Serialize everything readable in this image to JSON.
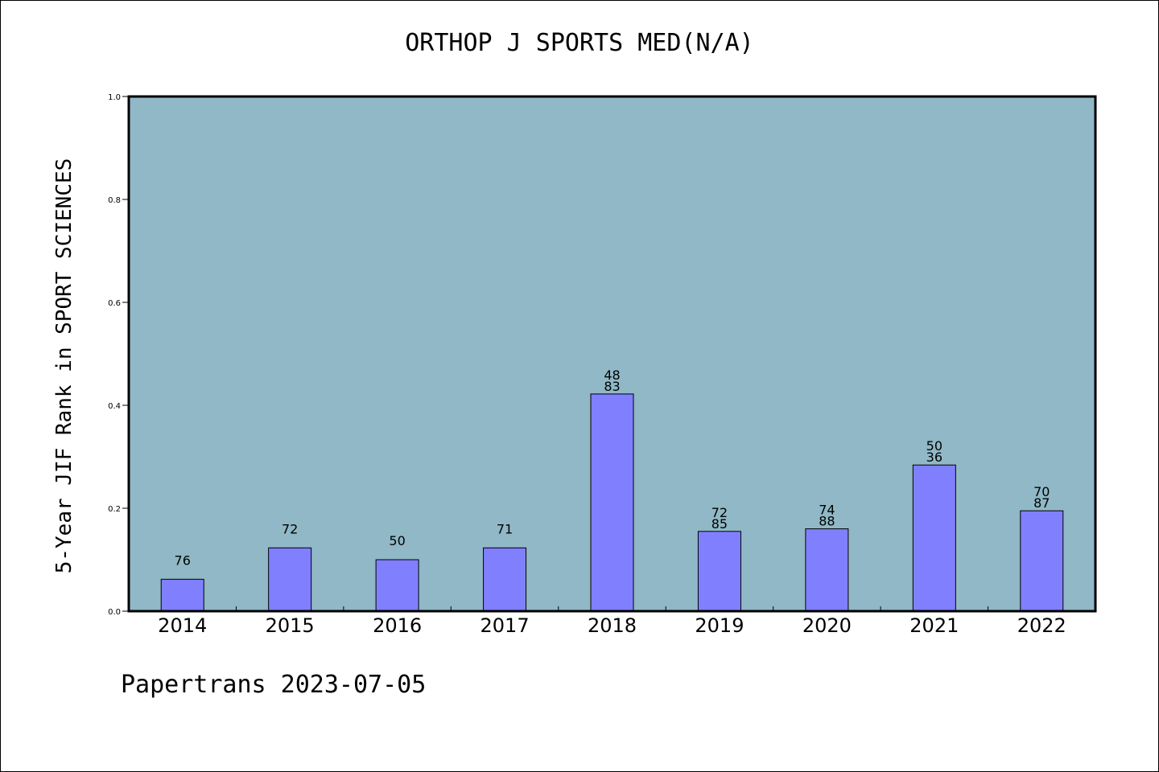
{
  "chart_data": {
    "type": "bar",
    "title": "ORTHOP J SPORTS MED(N/A)",
    "ylabel": "5-Year JIF Rank in SPORT SCIENCES",
    "xlabel": "",
    "ylim": [
      0,
      1.0
    ],
    "yticks": [
      "0.0",
      "0.2",
      "0.4",
      "0.6",
      "0.8",
      "1.0"
    ],
    "yticks_values": [
      0.0,
      0.2,
      0.4,
      0.6,
      0.8,
      1.0
    ],
    "categories": [
      "2014",
      "2015",
      "2016",
      "2017",
      "2018",
      "2019",
      "2020",
      "2021",
      "2022"
    ],
    "values": [
      0.062,
      0.123,
      0.1,
      0.123,
      0.422,
      0.155,
      0.16,
      0.284,
      0.195
    ],
    "data_labels": [
      [
        "76"
      ],
      [
        "72"
      ],
      [
        "50"
      ],
      [
        "71"
      ],
      [
        "48",
        "83"
      ],
      [
        "72",
        "85"
      ],
      [
        "74",
        "88"
      ],
      [
        "50",
        "36"
      ],
      [
        "70",
        "87"
      ]
    ],
    "grid": false,
    "bar_color": "#8080ff",
    "plot_background": "#90b8c6"
  },
  "footer": {
    "text": "Papertrans 2023-07-05"
  }
}
